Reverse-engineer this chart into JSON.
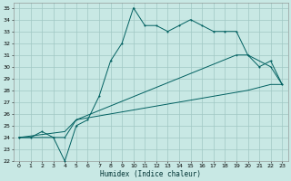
{
  "xlabel": "Humidex (Indice chaleur)",
  "bg_color": "#c8e8e4",
  "grid_color": "#a0c8c4",
  "line_color": "#006060",
  "xlim": [
    -0.5,
    23.5
  ],
  "ylim": [
    22,
    35.4
  ],
  "xticks": [
    0,
    1,
    2,
    3,
    4,
    5,
    6,
    7,
    8,
    9,
    10,
    11,
    12,
    13,
    14,
    15,
    16,
    17,
    18,
    19,
    20,
    21,
    22,
    23
  ],
  "yticks": [
    22,
    23,
    24,
    25,
    26,
    27,
    28,
    29,
    30,
    31,
    32,
    33,
    34,
    35
  ],
  "line1_x": [
    0,
    1,
    2,
    3,
    4,
    5,
    6,
    7,
    8,
    9,
    10,
    11,
    12,
    13,
    14,
    15,
    16,
    17,
    18,
    19,
    20,
    21,
    22,
    23
  ],
  "line1_y": [
    24,
    24,
    24.5,
    24,
    22,
    25,
    25.5,
    27.5,
    30.5,
    32,
    35,
    33.5,
    33.5,
    33,
    33.5,
    34,
    33.5,
    33,
    33,
    33,
    31,
    30,
    30.5,
    28.5
  ],
  "line2_x": [
    0,
    4,
    5,
    19,
    20,
    22,
    23
  ],
  "line2_y": [
    24,
    24,
    25.5,
    31,
    31,
    30,
    28.5
  ],
  "line3_x": [
    0,
    4,
    5,
    20,
    22,
    23
  ],
  "line3_y": [
    24,
    24.5,
    25.5,
    28,
    28.5,
    28.5
  ]
}
